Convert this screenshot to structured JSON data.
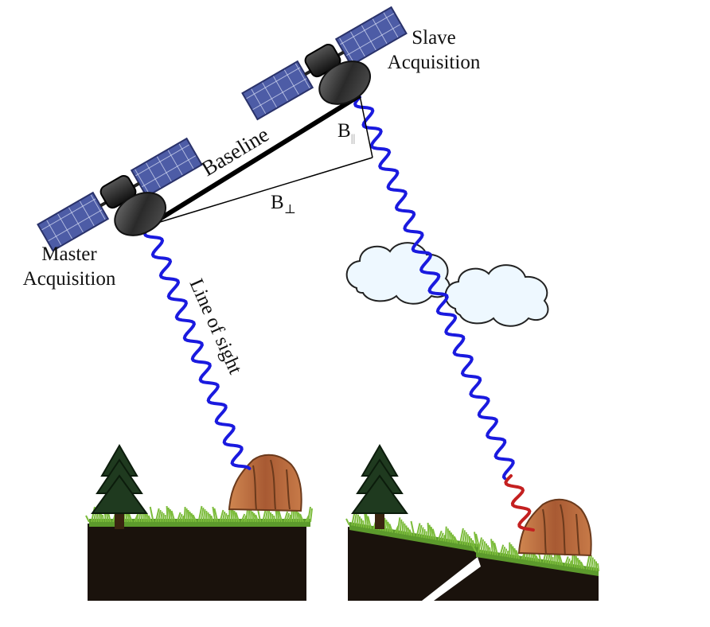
{
  "labels": {
    "master": [
      "Master",
      "Acquisition"
    ],
    "slave": [
      "Slave",
      "Acquisition"
    ],
    "baseline": "Baseline",
    "b_parallel": "B",
    "b_parallel_sub": "||",
    "b_perp": "B",
    "b_perp_sub": "⊥",
    "line_of_sight": "Line of sight"
  },
  "colors": {
    "signal": "#1a1adf",
    "deformation_signal": "#c42020",
    "baseline": "#000000",
    "solar_panel": "#4a5aa0",
    "dish": "#333333",
    "ground": "#1a120c",
    "grass": "#6aa832",
    "tree": "#1f3a1f",
    "rock": "#b5643a",
    "cloud": "#eef8ff"
  },
  "icons": {
    "satellite": "satellite-icon",
    "cloud": "cloud-icon",
    "tree": "pine-tree-icon",
    "rock": "rock-icon"
  }
}
